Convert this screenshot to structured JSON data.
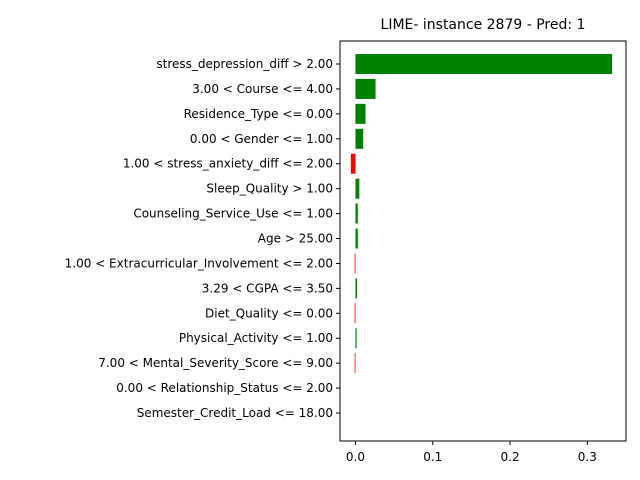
{
  "chart_data": {
    "type": "bar",
    "orientation": "horizontal",
    "title": "LIME- instance 2879 - Pred: 1",
    "xlabel": "",
    "ylabel": "",
    "xlim": [
      -0.02,
      0.35
    ],
    "xticks": [
      0.0,
      0.1,
      0.2,
      0.3
    ],
    "xtick_labels": [
      "0.0",
      "0.1",
      "0.2",
      "0.3"
    ],
    "grid": false,
    "colors": {
      "positive": "#008000",
      "negative": "#ff0000"
    },
    "categories": [
      "stress_depression_diff > 2.00",
      "3.00 < Course <= 4.00",
      "Residence_Type <= 0.00",
      "0.00 < Gender <= 1.00",
      "1.00 < stress_anxiety_diff <= 2.00",
      "Sleep_Quality > 1.00",
      "Counseling_Service_Use <= 1.00",
      "Age > 25.00",
      "1.00 < Extracurricular_Involvement <= 2.00",
      "3.29 < CGPA <= 3.50",
      "Diet_Quality <= 0.00",
      "Physical_Activity <= 1.00",
      "7.00 < Mental_Severity_Score <= 9.00",
      "0.00 < Relationship_Status <= 2.00",
      "Semester_Credit_Load <= 18.00"
    ],
    "values": [
      0.332,
      0.026,
      0.013,
      0.01,
      -0.006,
      0.005,
      0.003,
      0.003,
      -0.001,
      0.002,
      -0.001,
      0.0015,
      -0.001,
      0.0,
      0.0
    ]
  }
}
